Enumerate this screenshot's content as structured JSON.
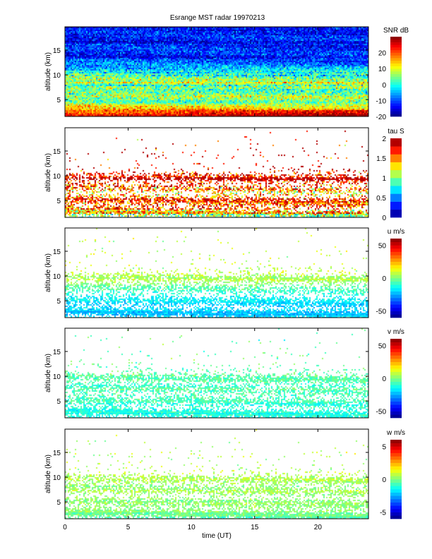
{
  "chart_data": {
    "type": "heatmap",
    "title": "Esrange MST radar 19970213",
    "xlabel": "time (UT)",
    "ylabel": "altitude (km)",
    "xlim": [
      0,
      24
    ],
    "ylim": [
      1.6,
      19.7
    ],
    "xticks": [
      "0",
      "5",
      "10",
      "15",
      "20"
    ],
    "yticks": [
      "5",
      "10",
      "15"
    ],
    "colormap": "jet",
    "panels": [
      {
        "name": "snr",
        "colorbar_label": "SNR dB",
        "clim": [
          -20,
          30
        ],
        "cticks": [
          "-20",
          "-10",
          "0",
          "10",
          "20"
        ],
        "levels": 30,
        "coverage_top_km": 19.7,
        "profile": [
          [
            1.6,
            27,
            4,
            1
          ],
          [
            2.5,
            20,
            5,
            1
          ],
          [
            3.5,
            12,
            5,
            1
          ],
          [
            5,
            6,
            6,
            1
          ],
          [
            7,
            4,
            7,
            1
          ],
          [
            9,
            6,
            7,
            1
          ],
          [
            10,
            2,
            7,
            1
          ],
          [
            12,
            -8,
            5,
            1
          ],
          [
            15,
            -12,
            5,
            1
          ],
          [
            19.7,
            -14,
            5,
            1
          ]
        ]
      },
      {
        "name": "tau",
        "colorbar_label": "tau S",
        "clim": [
          0,
          2
        ],
        "cticks": [
          "0",
          "0.5",
          "1",
          "1.5",
          "2"
        ],
        "levels": 10,
        "profile": [
          [
            1.6,
            0.9,
            0.3,
            0.9
          ],
          [
            3,
            1.4,
            0.4,
            0.9
          ],
          [
            5,
            1.7,
            0.3,
            0.8
          ],
          [
            6.5,
            1.3,
            0.4,
            0.55
          ],
          [
            8,
            1.5,
            0.4,
            0.5
          ],
          [
            9.5,
            1.85,
            0.2,
            0.85
          ],
          [
            10.5,
            1.8,
            0.3,
            0.4
          ],
          [
            12,
            1.8,
            0.3,
            0.04
          ],
          [
            19.7,
            1.8,
            0.3,
            0.005
          ]
        ]
      },
      {
        "name": "u",
        "colorbar_label": "u m/s",
        "clim": [
          -60,
          60
        ],
        "cticks": [
          "-50",
          "0",
          "50"
        ],
        "levels": 24,
        "profile": [
          [
            1.6,
            -22,
            5,
            0.95
          ],
          [
            4,
            -20,
            5,
            0.85
          ],
          [
            6,
            -15,
            6,
            0.6
          ],
          [
            7.5,
            -5,
            6,
            0.55
          ],
          [
            9.5,
            5,
            5,
            0.85
          ],
          [
            10.5,
            8,
            6,
            0.4
          ],
          [
            12,
            8,
            6,
            0.04
          ],
          [
            19.7,
            8,
            6,
            0.005
          ]
        ]
      },
      {
        "name": "v",
        "colorbar_label": "v m/s",
        "clim": [
          -60,
          60
        ],
        "cticks": [
          "-50",
          "0",
          "50"
        ],
        "levels": 24,
        "profile": [
          [
            1.6,
            -12,
            5,
            0.95
          ],
          [
            4,
            -10,
            5,
            0.8
          ],
          [
            6,
            -8,
            6,
            0.6
          ],
          [
            7.5,
            -6,
            5,
            0.6
          ],
          [
            9.5,
            -5,
            5,
            0.85
          ],
          [
            10.5,
            -5,
            6,
            0.4
          ],
          [
            12,
            -4,
            6,
            0.04
          ],
          [
            19.7,
            -4,
            6,
            0.005
          ]
        ]
      },
      {
        "name": "w",
        "colorbar_label": "w m/s",
        "clim": [
          -6,
          6
        ],
        "cticks": [
          "-5",
          "0",
          "5"
        ],
        "levels": 24,
        "profile": [
          [
            1.6,
            -0.6,
            0.5,
            0.95
          ],
          [
            4,
            0.3,
            0.5,
            0.85
          ],
          [
            6,
            0.3,
            0.5,
            0.55
          ],
          [
            7.5,
            0.4,
            0.5,
            0.6
          ],
          [
            9.5,
            0.5,
            0.5,
            0.8
          ],
          [
            10.5,
            0.5,
            0.5,
            0.35
          ],
          [
            12,
            0.5,
            0.6,
            0.04
          ],
          [
            19.7,
            0.5,
            0.6,
            0.005
          ]
        ]
      }
    ]
  }
}
